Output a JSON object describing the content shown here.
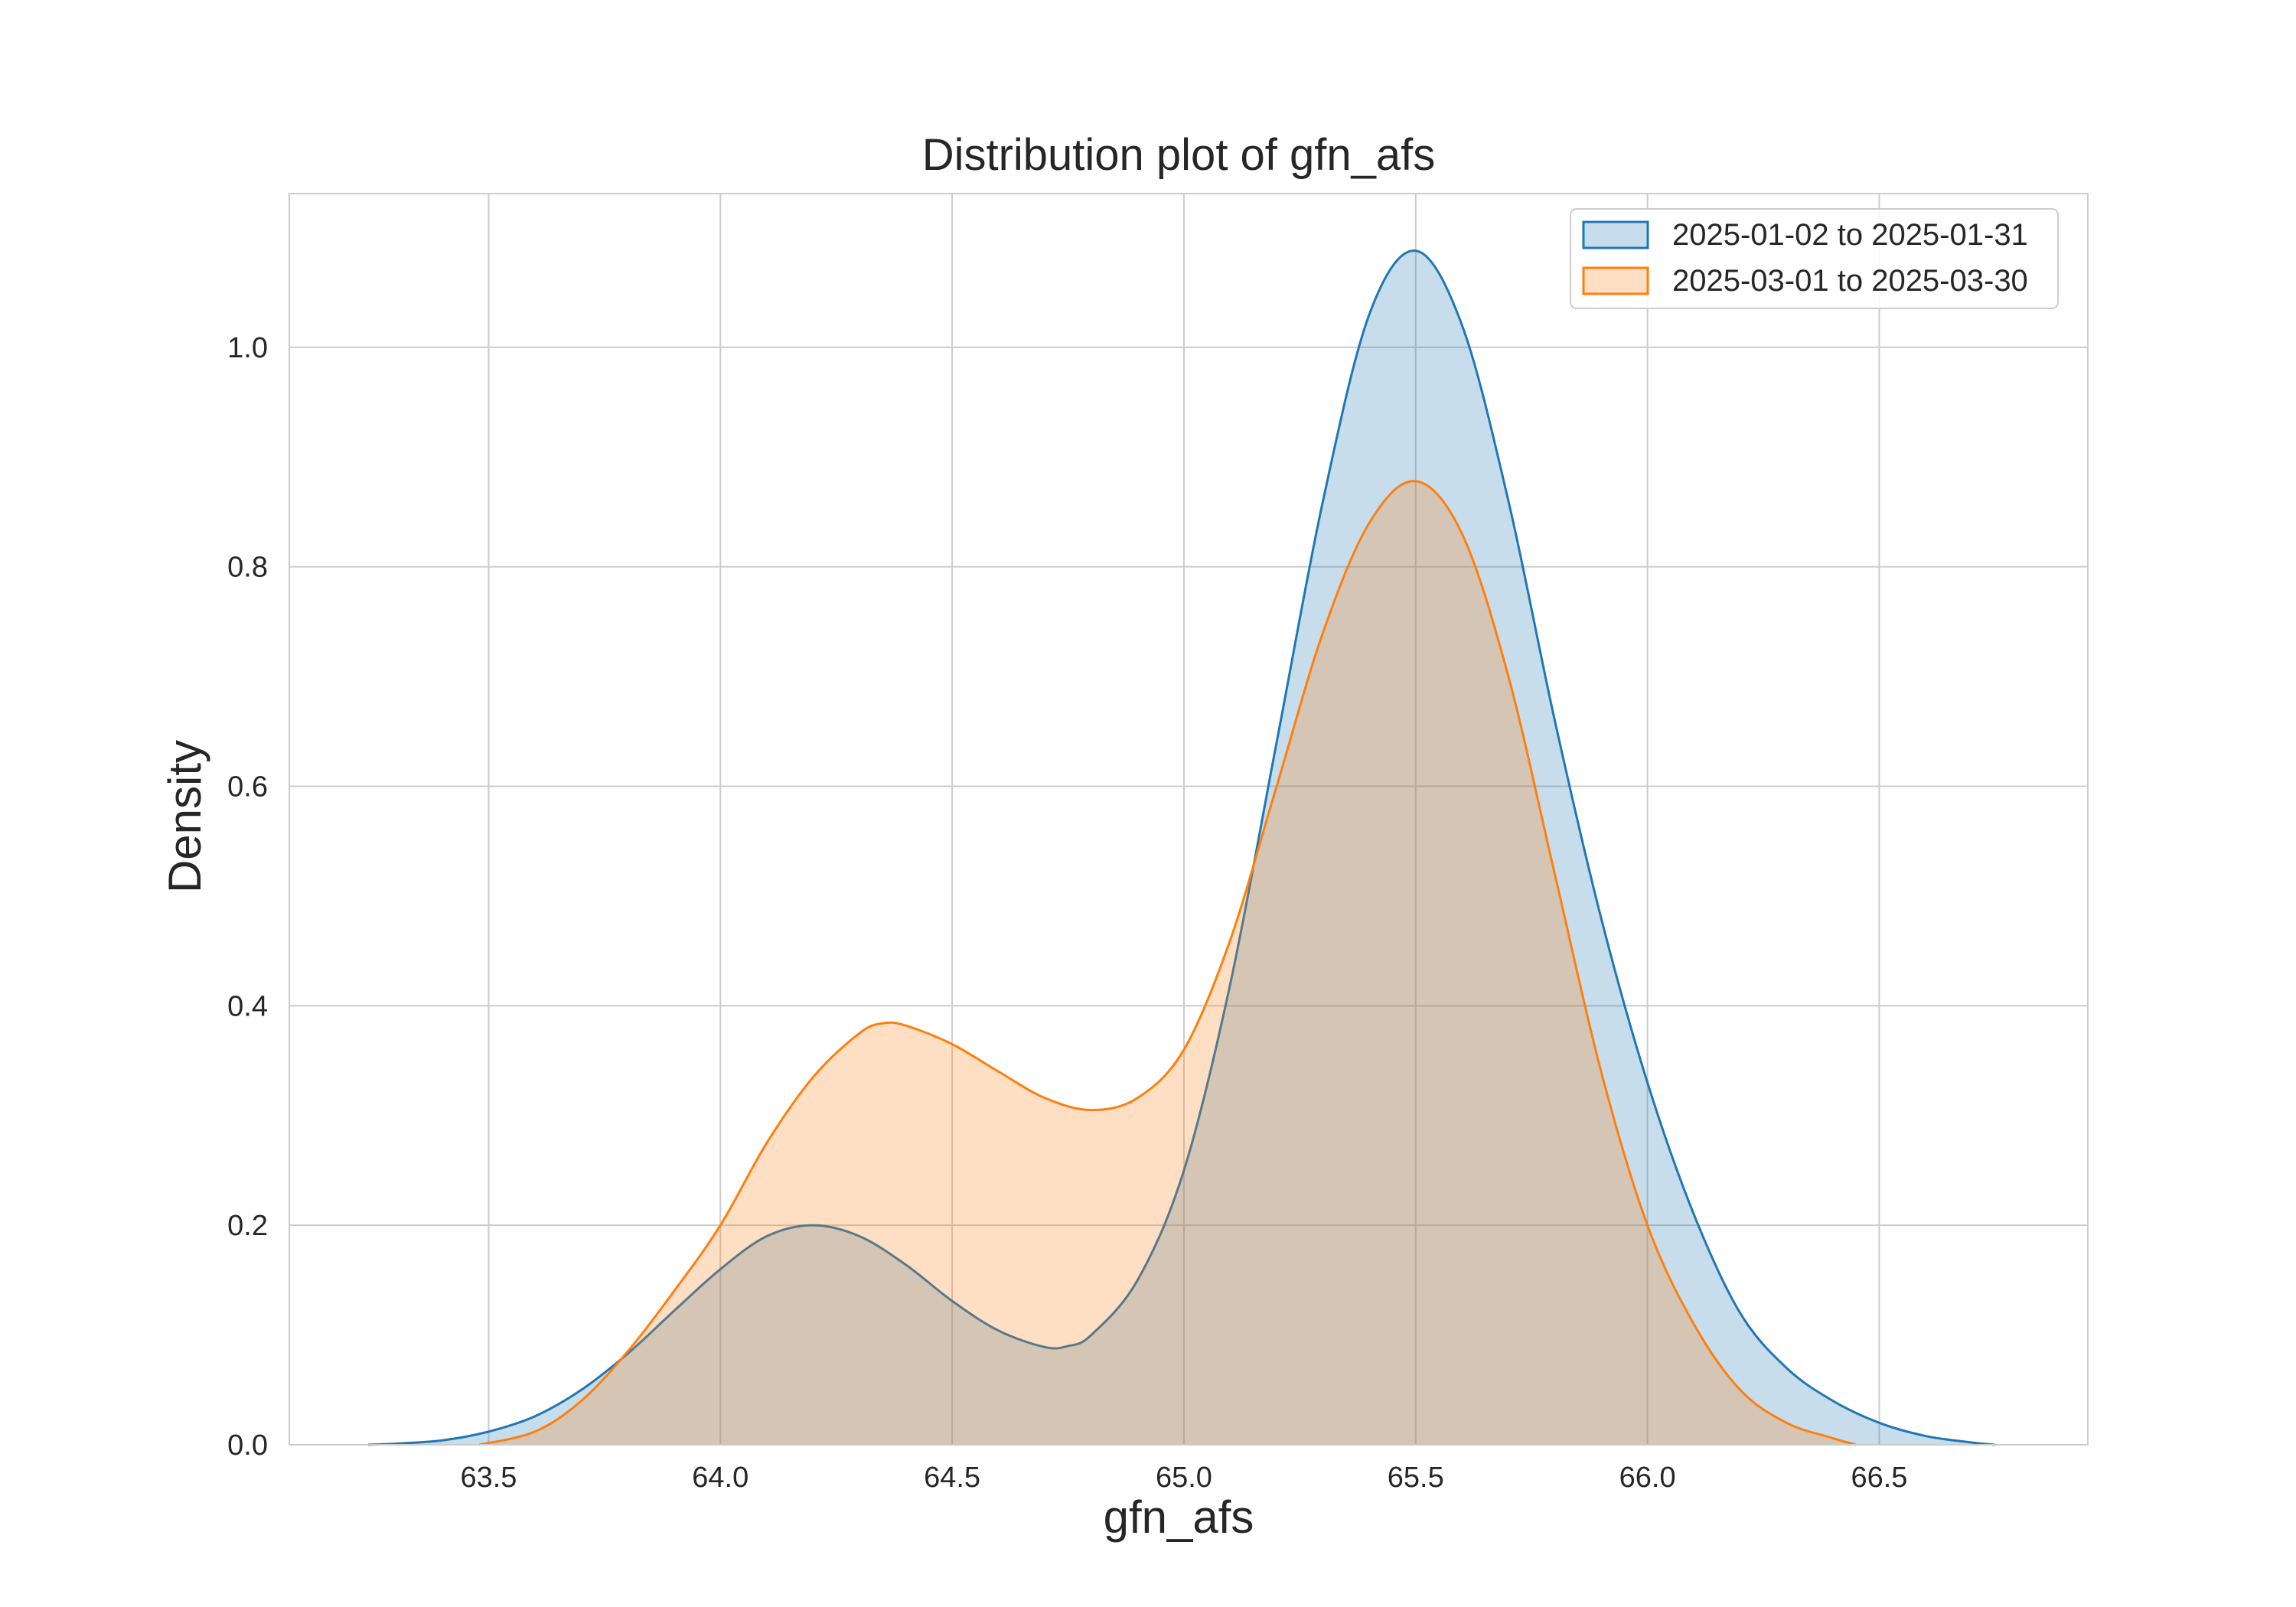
{
  "chart_data": {
    "type": "area",
    "kind": "kde",
    "title": "Distribution plot of gfn_afs",
    "xlabel": "gfn_afs",
    "ylabel": "Density",
    "xlim": [
      63.07,
      66.95
    ],
    "ylim": [
      0.0,
      1.14
    ],
    "xticks": [
      63.5,
      64.0,
      64.5,
      65.0,
      65.5,
      66.0,
      66.5
    ],
    "xtick_labels": [
      "63.5",
      "64.0",
      "64.5",
      "65.0",
      "65.5",
      "66.0",
      "66.5"
    ],
    "yticks": [
      0.0,
      0.2,
      0.4,
      0.6,
      0.8,
      1.0
    ],
    "ytick_labels": [
      "0.0",
      "0.2",
      "0.4",
      "0.6",
      "0.8",
      "1.0"
    ],
    "grid": true,
    "legend_position": "top-right",
    "series": [
      {
        "name": "2025-01-02 to 2025-01-31",
        "color": "#1f77b4",
        "fill": "#1f77b4",
        "points": [
          [
            63.24,
            0.0
          ],
          [
            63.3,
            0.001
          ],
          [
            63.4,
            0.004
          ],
          [
            63.5,
            0.012
          ],
          [
            63.6,
            0.026
          ],
          [
            63.7,
            0.05
          ],
          [
            63.8,
            0.083
          ],
          [
            63.9,
            0.122
          ],
          [
            64.0,
            0.16
          ],
          [
            64.1,
            0.19
          ],
          [
            64.2,
            0.2
          ],
          [
            64.3,
            0.19
          ],
          [
            64.4,
            0.164
          ],
          [
            64.5,
            0.131
          ],
          [
            64.6,
            0.104
          ],
          [
            64.7,
            0.089
          ],
          [
            64.75,
            0.09
          ],
          [
            64.8,
            0.1
          ],
          [
            64.9,
            0.15
          ],
          [
            65.0,
            0.25
          ],
          [
            65.1,
            0.42
          ],
          [
            65.2,
            0.64
          ],
          [
            65.3,
            0.86
          ],
          [
            65.4,
            1.03
          ],
          [
            65.5,
            1.088
          ],
          [
            65.6,
            1.02
          ],
          [
            65.7,
            0.86
          ],
          [
            65.8,
            0.66
          ],
          [
            65.9,
            0.48
          ],
          [
            66.0,
            0.33
          ],
          [
            66.1,
            0.21
          ],
          [
            66.2,
            0.12
          ],
          [
            66.3,
            0.07
          ],
          [
            66.4,
            0.04
          ],
          [
            66.5,
            0.02
          ],
          [
            66.6,
            0.008
          ],
          [
            66.7,
            0.002
          ],
          [
            66.75,
            0.0
          ]
        ]
      },
      {
        "name": "2025-03-01 to 2025-03-30",
        "color": "#ff7f0e",
        "fill": "#ff7f0e",
        "points": [
          [
            63.48,
            0.0
          ],
          [
            63.6,
            0.012
          ],
          [
            63.7,
            0.04
          ],
          [
            63.8,
            0.085
          ],
          [
            63.9,
            0.14
          ],
          [
            64.0,
            0.2
          ],
          [
            64.1,
            0.275
          ],
          [
            64.2,
            0.335
          ],
          [
            64.3,
            0.375
          ],
          [
            64.35,
            0.384
          ],
          [
            64.4,
            0.382
          ],
          [
            64.5,
            0.365
          ],
          [
            64.6,
            0.34
          ],
          [
            64.7,
            0.316
          ],
          [
            64.8,
            0.305
          ],
          [
            64.9,
            0.316
          ],
          [
            65.0,
            0.36
          ],
          [
            65.1,
            0.46
          ],
          [
            65.2,
            0.6
          ],
          [
            65.3,
            0.74
          ],
          [
            65.4,
            0.84
          ],
          [
            65.5,
            0.878
          ],
          [
            65.6,
            0.83
          ],
          [
            65.7,
            0.7
          ],
          [
            65.8,
            0.52
          ],
          [
            65.9,
            0.34
          ],
          [
            66.0,
            0.2
          ],
          [
            66.1,
            0.11
          ],
          [
            66.2,
            0.05
          ],
          [
            66.3,
            0.02
          ],
          [
            66.4,
            0.006
          ],
          [
            66.45,
            0.0
          ]
        ]
      }
    ]
  }
}
